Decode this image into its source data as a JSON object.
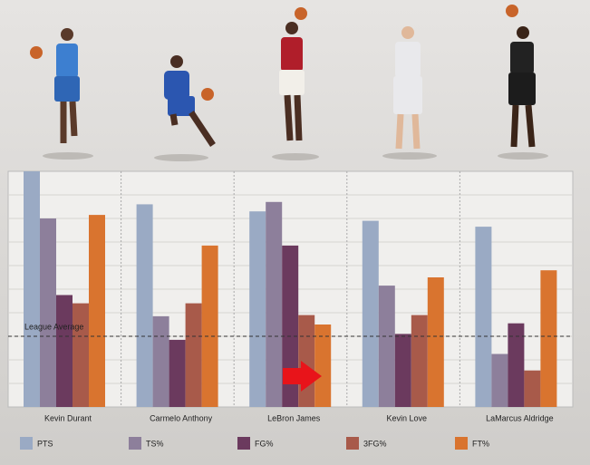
{
  "chart_data": {
    "type": "bar",
    "categories": [
      "Kevin Durant",
      "Carmelo Anthony",
      "LeBron James",
      "Kevin Love",
      "LaMarcus Aldridge"
    ],
    "series": [
      {
        "name": "PTS",
        "color": "#9aaac4",
        "values": [
          10,
          8.6,
          8.3,
          7.9,
          7.65
        ]
      },
      {
        "name": "TS%",
        "color": "#8d7f9b",
        "values": [
          8,
          3.85,
          8.7,
          5.15,
          2.25
        ]
      },
      {
        "name": "FG%",
        "color": "#6b3a5e",
        "values": [
          4.75,
          2.85,
          6.85,
          3.1,
          3.55
        ]
      },
      {
        "name": "3FG%",
        "color": "#a85a4a",
        "values": [
          4.4,
          4.4,
          3.9,
          3.9,
          1.55
        ]
      },
      {
        "name": "FT%",
        "color": "#d9742f",
        "values": [
          8.15,
          6.85,
          3.5,
          5.5,
          5.8
        ]
      }
    ],
    "ylim": [
      0,
      10
    ],
    "grid_lines": [
      1,
      2,
      3,
      4,
      5,
      6,
      7,
      8,
      9
    ],
    "reference_line": {
      "label": "League Average",
      "value": 3
    }
  }
}
